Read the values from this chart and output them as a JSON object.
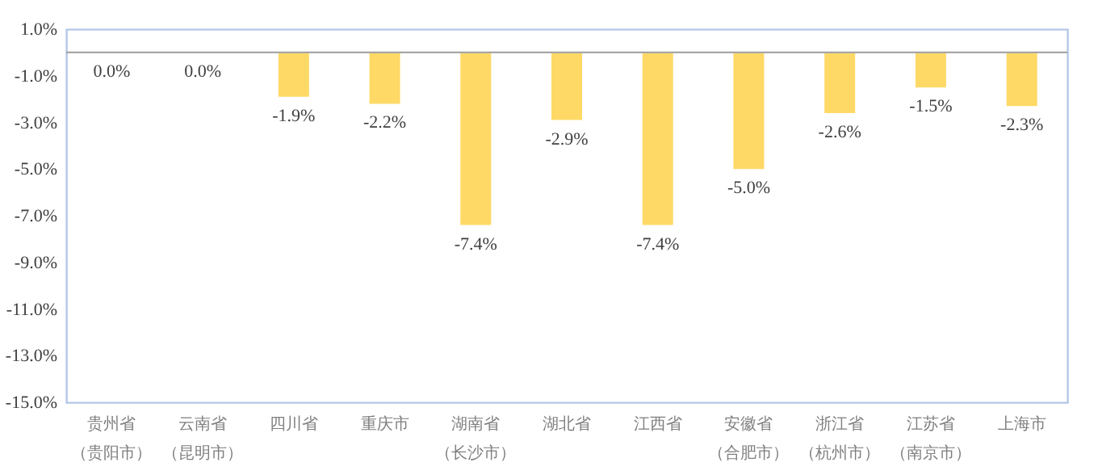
{
  "chart_data": {
    "type": "bar",
    "categories": [
      "贵州省（贵阳市）",
      "云南省（昆明市）",
      "四川省",
      "重庆市",
      "湖南省（长沙市）",
      "湖北省",
      "江西省",
      "安徽省（合肥市）",
      "浙江省（杭州市）",
      "江苏省（南京市）",
      "上海市"
    ],
    "values": [
      0,
      0,
      -1.9,
      -2.2,
      -7.4,
      -2.9,
      -7.4,
      -5.0,
      -2.6,
      -1.5,
      -2.3
    ],
    "value_labels": [
      "0.0%",
      "0.0%",
      "-1.9%",
      "-2.2%",
      "-7.4%",
      "-2.9%",
      "-7.4%",
      "-5.0%",
      "-2.6%",
      "-1.5%",
      "-2.3%"
    ],
    "color": "#ffd966",
    "ylim": [
      -15,
      1
    ],
    "yticks": [
      {
        "value": 1,
        "label": "1.0%"
      },
      {
        "value": -1,
        "label": "-1.0%"
      },
      {
        "value": -3,
        "label": "-3.0%"
      },
      {
        "value": -5,
        "label": "-5.0%"
      },
      {
        "value": -7,
        "label": "-7.0%"
      },
      {
        "value": -9,
        "label": "-9.0%"
      },
      {
        "value": -11,
        "label": "-11.0%"
      },
      {
        "value": -13,
        "label": "-13.0%"
      },
      {
        "value": -15,
        "label": "-15.0%"
      }
    ],
    "ref_lines": [
      {
        "axis": "y",
        "value": 0,
        "color": "#a6a6a6"
      }
    ],
    "grid": false
  }
}
